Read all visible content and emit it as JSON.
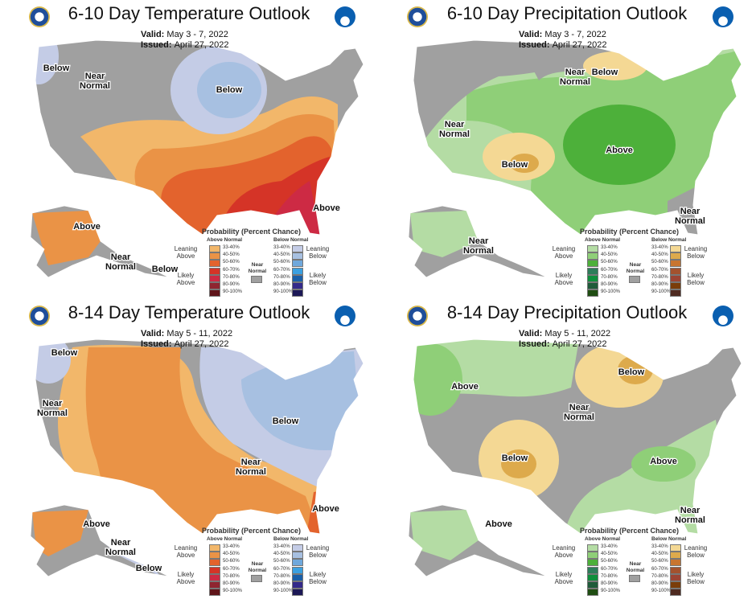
{
  "panels": [
    {
      "title": "6-10 Day Temperature Outlook",
      "valid_label": "Valid:",
      "valid": "May 3 - 7, 2022",
      "issued_label": "Issued:",
      "issued": "April 27, 2022",
      "kind": "temp",
      "labels": [
        "Below",
        "Near Normal",
        "Below",
        "Above",
        "Above",
        "Near Normal",
        "Below"
      ]
    },
    {
      "title": "6-10 Day Precipitation Outlook",
      "valid_label": "Valid:",
      "valid": "May 3 - 7, 2022",
      "issued_label": "Issued:",
      "issued": "April 27, 2022",
      "kind": "precip",
      "labels": [
        "Near Normal",
        "Below",
        "Near Normal",
        "Below",
        "Above",
        "Near Normal",
        "Near Normal"
      ]
    },
    {
      "title": "8-14 Day Temperature Outlook",
      "valid_label": "Valid:",
      "valid": "May 5 - 11, 2022",
      "issued_label": "Issued:",
      "issued": "April 27, 2022",
      "kind": "temp",
      "labels": [
        "Below",
        "Near Normal",
        "Below",
        "Near Normal",
        "Above",
        "Above",
        "Near Normal",
        "Below"
      ]
    },
    {
      "title": "8-14 Day Precipitation Outlook",
      "valid_label": "Valid:",
      "valid": "May 5 - 11, 2022",
      "issued_label": "Issued:",
      "issued": "April 27, 2022",
      "kind": "precip",
      "labels": [
        "Above",
        "Below",
        "Near Normal",
        "Below",
        "Above",
        "Near Normal",
        "Above"
      ]
    }
  ],
  "legend": {
    "title": "Probability (Percent Chance)",
    "above_head": "Above Normal",
    "below_head": "Below Normal",
    "leaning_above": "Leaning Above",
    "likely_above": "Likely Above",
    "leaning_below": "Leaning Below",
    "likely_below": "Likely Below",
    "near": "Near Normal",
    "near_color": "#a0a0a0",
    "ranges": [
      "33-40%",
      "40-50%",
      "50-60%",
      "60-70%",
      "70-80%",
      "80-90%",
      "90-100%"
    ],
    "temp_above": [
      "#f2b76a",
      "#ea9346",
      "#e3632d",
      "#d53427",
      "#cd2a44",
      "#8f2530",
      "#5f1419"
    ],
    "temp_below": [
      "#c4cce6",
      "#a7c0e1",
      "#6fa8dc",
      "#3ba0e0",
      "#1a5fa8",
      "#342a8a",
      "#1c1856"
    ],
    "precip_above": [
      "#b4dca4",
      "#8fcf78",
      "#4db03a",
      "#2e7d5a",
      "#0f8f3c",
      "#1f5b3a",
      "#1f4d12"
    ],
    "precip_below": [
      "#f4d894",
      "#ddaa4c",
      "#c87530",
      "#a3522e",
      "#9c4434",
      "#7a3d0a",
      "#4e2a20"
    ]
  }
}
